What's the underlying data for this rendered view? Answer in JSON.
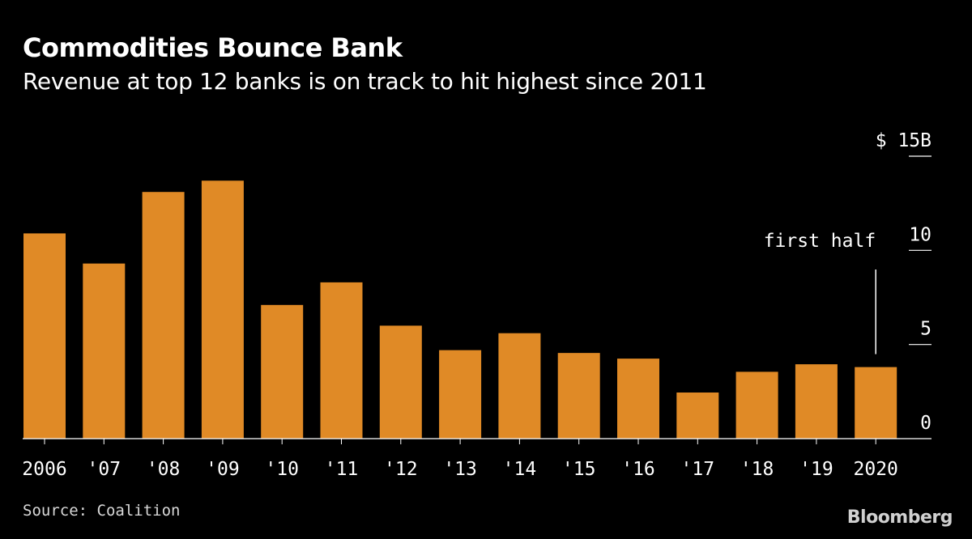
{
  "header": {
    "title": "Commodities Bounce Bank",
    "subtitle": "Revenue at top 12 banks is on track to hit highest since 2011"
  },
  "footer": {
    "source": "Source: Coalition",
    "brand": "Bloomberg"
  },
  "colors": {
    "background": "#000000",
    "bar": "#E08A26",
    "text": "#ffffff",
    "axis": "#ffffff"
  },
  "chart_data": {
    "type": "bar",
    "categories": [
      "2006",
      "'07",
      "'08",
      "'09",
      "'10",
      "'11",
      "'12",
      "'13",
      "'14",
      "'15",
      "'16",
      "'17",
      "'18",
      "'19",
      "2020"
    ],
    "values": [
      10.9,
      9.3,
      13.1,
      13.7,
      7.1,
      8.3,
      6.0,
      4.7,
      5.6,
      4.55,
      4.25,
      2.45,
      3.55,
      3.95,
      3.8
    ],
    "ylim": [
      0,
      15
    ],
    "y_ticks": [
      0,
      5,
      10,
      15
    ],
    "y_tick_labels": [
      "0",
      "5",
      "10",
      "$ 15B"
    ],
    "y_axis_side": "right",
    "grid": false,
    "annotation": {
      "text": "first half",
      "category": "2020"
    }
  }
}
